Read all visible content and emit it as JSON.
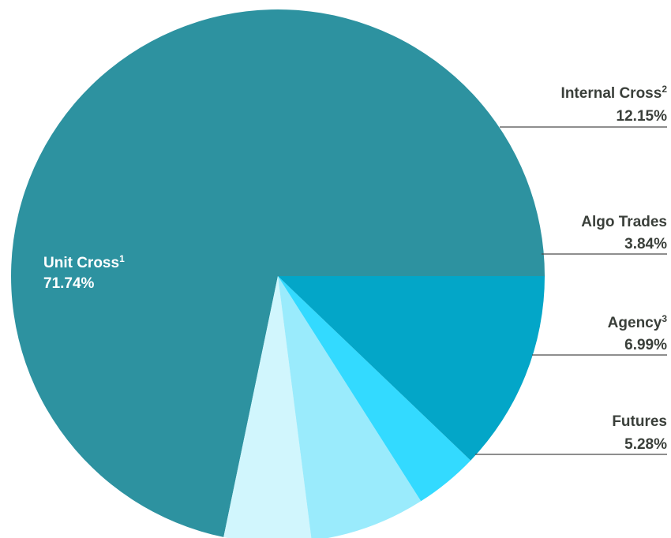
{
  "chart_data": {
    "type": "pie",
    "start_angle_deg": 0,
    "direction": "counterclockwise-from-east",
    "slices": [
      {
        "name": "Unit Cross",
        "superscript": "1",
        "value": 71.74,
        "value_label": "71.74%",
        "color": "#2d92a0",
        "label_style": "inside"
      },
      {
        "name": "Futures",
        "superscript": "",
        "value": 5.28,
        "value_label": "5.28%",
        "color": "#d1f6fd",
        "label_style": "right"
      },
      {
        "name": "Agency",
        "superscript": "3",
        "value": 6.99,
        "value_label": "6.99%",
        "color": "#9aebfc",
        "label_style": "right"
      },
      {
        "name": "Algo Trades",
        "superscript": "",
        "value": 3.84,
        "value_label": "3.84%",
        "color": "#33daff",
        "label_style": "right"
      },
      {
        "name": "Internal Cross",
        "superscript": "2",
        "value": 12.15,
        "value_label": "12.15%",
        "color": "#03a6c8",
        "label_style": "right"
      }
    ],
    "legend": "none",
    "label_color": "#3a3f3a"
  }
}
